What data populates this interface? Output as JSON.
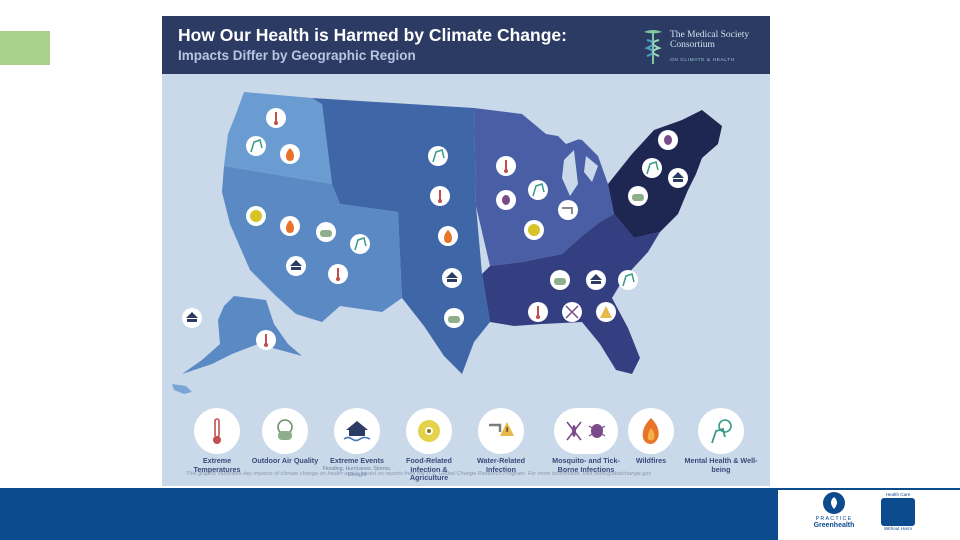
{
  "infographic": {
    "title": "How Our Health is Harmed by Climate Change:",
    "subtitle": "Impacts Differ by Geographic Region",
    "consortium": {
      "name": "The Medical Society Consortium",
      "tagline": "ON CLIMATE & HEALTH"
    },
    "legend": [
      {
        "label": "Extreme Temperatures",
        "icon": "thermometer-icon",
        "sub": ""
      },
      {
        "label": "Outdoor Air Quality",
        "icon": "mask-icon",
        "sub": ""
      },
      {
        "label": "Extreme Events",
        "icon": "flood-house-icon",
        "sub": "Flooding, Hurricanes, Storms, Drought"
      },
      {
        "label": "Food-Related Infection & Agriculture",
        "icon": "biohazard-icon",
        "sub": ""
      },
      {
        "label": "Water-Related Infection",
        "icon": "faucet-warning-icon",
        "sub": ""
      },
      {
        "label": "Mosquito- and Tick-Borne Infections",
        "icon": "mosquito-tick-icon",
        "sub": ""
      },
      {
        "label": "Wildfires",
        "icon": "fire-icon",
        "sub": ""
      },
      {
        "label": "Mental Health & Well-being",
        "icon": "mental-health-icon",
        "sub": ""
      }
    ],
    "footnote": "This graphic illustrates key impacts of climate change on health and is based on reports from the U.S. Global Change Research Program. For more information, visit www.globalchange.gov"
  },
  "logos": {
    "practice_greenhealth": {
      "line1": "PRACTICE",
      "line2": "Greenhealth"
    },
    "hcwh": {
      "line1": "Health Care",
      "line2": "Without Harm"
    }
  },
  "colors": {
    "header": "#2b3b63",
    "background": "#c9d9ea",
    "accent_green": "#a9d18e",
    "bottom_bar": "#0c4b8e",
    "northwest": "#6a9bd1",
    "southwest": "#5a89c4",
    "great_plains": "#3f66a6",
    "midwest": "#4a5ea6",
    "northeast": "#1e2652",
    "southeast": "#333f80",
    "alaska": "#5a89c4",
    "hawaii": "#7aa6d6"
  }
}
